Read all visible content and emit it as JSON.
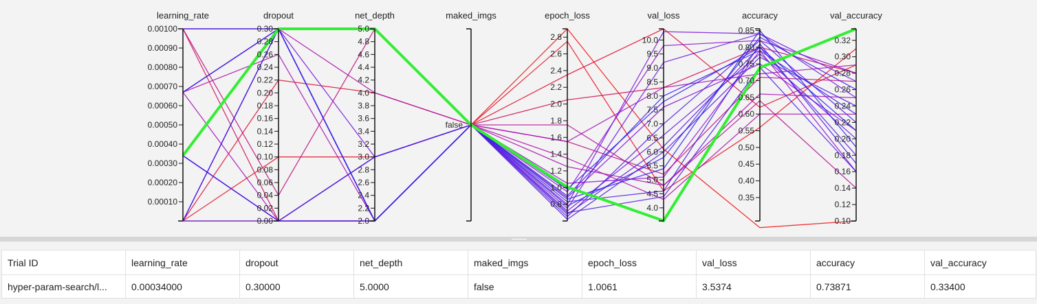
{
  "chart_data": {
    "type": "parallel_coordinates",
    "axes": [
      {
        "key": "learning_rate",
        "label": "learning_rate",
        "min": 0.0,
        "max": 0.001,
        "ticks": [
          "0.00100",
          "0.00090",
          "0.00080",
          "0.00070",
          "0.00060",
          "0.00050",
          "0.00040",
          "0.00030",
          "0.00020",
          "0.00010"
        ],
        "tick_values": [
          0.001,
          0.0009,
          0.0008,
          0.0007,
          0.0006,
          0.0005,
          0.0004,
          0.0003,
          0.0002,
          0.0001
        ]
      },
      {
        "key": "dropout",
        "label": "dropout",
        "min": 0.0,
        "max": 0.3,
        "ticks": [
          "0.30",
          "0.28",
          "0.26",
          "0.24",
          "0.22",
          "0.20",
          "0.18",
          "0.16",
          "0.14",
          "0.12",
          "0.10",
          "0.08",
          "0.06",
          "0.04",
          "0.02",
          "0.00"
        ],
        "tick_values": [
          0.3,
          0.28,
          0.26,
          0.24,
          0.22,
          0.2,
          0.18,
          0.16,
          0.14,
          0.12,
          0.1,
          0.08,
          0.06,
          0.04,
          0.02,
          0.0
        ]
      },
      {
        "key": "net_depth",
        "label": "net_depth",
        "min": 2.0,
        "max": 5.0,
        "ticks": [
          "5.0",
          "4.8",
          "4.6",
          "4.4",
          "4.2",
          "4.0",
          "3.8",
          "3.6",
          "3.4",
          "3.2",
          "3.0",
          "2.8",
          "2.6",
          "2.4",
          "2.2",
          "2.0"
        ],
        "tick_values": [
          5.0,
          4.8,
          4.6,
          4.4,
          4.2,
          4.0,
          3.8,
          3.6,
          3.4,
          3.2,
          3.0,
          2.8,
          2.6,
          2.4,
          2.2,
          2.0
        ]
      },
      {
        "key": "maked_imgs",
        "label": "maked_imgs",
        "categorical": true,
        "ticks": [
          "false"
        ]
      },
      {
        "key": "epoch_loss",
        "label": "epoch_loss",
        "min": 0.6,
        "max": 2.9,
        "ticks": [
          "2.8",
          "2.6",
          "2.4",
          "2.2",
          "2.0",
          "1.8",
          "1.6",
          "1.4",
          "1.2",
          "1.0",
          "0.8"
        ],
        "tick_values": [
          2.8,
          2.6,
          2.4,
          2.2,
          2.0,
          1.8,
          1.6,
          1.4,
          1.2,
          1.0,
          0.8
        ]
      },
      {
        "key": "val_loss",
        "label": "val_loss",
        "min": 3.53,
        "max": 10.4,
        "ticks": [
          "10.0",
          "9.5",
          "9.0",
          "8.5",
          "8.0",
          "7.5",
          "7.0",
          "6.5",
          "6.0",
          "5.5",
          "5.0",
          "4.5",
          "4.0"
        ],
        "tick_values": [
          10.0,
          9.5,
          9.0,
          8.5,
          8.0,
          7.5,
          7.0,
          6.5,
          6.0,
          5.5,
          5.0,
          4.5,
          4.0
        ]
      },
      {
        "key": "accuracy",
        "label": "accuracy",
        "min": 0.28,
        "max": 0.855,
        "ticks": [
          "0.85",
          "0.80",
          "0.75",
          "0.70",
          "0.65",
          "0.60",
          "0.55",
          "0.50",
          "0.45",
          "0.40",
          "0.35"
        ],
        "tick_values": [
          0.85,
          0.8,
          0.75,
          0.7,
          0.65,
          0.6,
          0.55,
          0.5,
          0.45,
          0.4,
          0.35
        ]
      },
      {
        "key": "val_accuracy",
        "label": "val_accuracy",
        "min": 0.1,
        "max": 0.334,
        "ticks": [
          "0.32",
          "0.30",
          "0.28",
          "0.26",
          "0.24",
          "0.22",
          "0.20",
          "0.18",
          "0.16",
          "0.14",
          "0.12",
          "0.10"
        ],
        "tick_values": [
          0.32,
          0.3,
          0.28,
          0.26,
          0.24,
          0.22,
          0.2,
          0.18,
          0.16,
          0.14,
          0.12,
          0.1
        ]
      }
    ],
    "highlight_color": "#33ee33",
    "color_scale": [
      "#2222ee",
      "#9911cc",
      "#ee1111"
    ],
    "trials": [
      {
        "v": [
          0.00034,
          0.3,
          5.0,
          "false",
          1.0061,
          3.5374,
          0.73871,
          0.334
        ],
        "highlight": true
      },
      {
        "v": [
          0.0,
          0.0,
          2.0,
          "false",
          2.9,
          6.1,
          0.26,
          0.1
        ],
        "c": 1.0
      },
      {
        "v": [
          0.0,
          0.1,
          3.0,
          "false",
          2.75,
          4.6,
          0.56,
          0.31
        ],
        "c": 0.95
      },
      {
        "v": [
          0.0,
          0.22,
          4.0,
          "false",
          2.35,
          10.4,
          0.62,
          0.29
        ],
        "c": 0.9
      },
      {
        "v": [
          0.001,
          0.0,
          3.0,
          "false",
          2.05,
          8.3,
          0.8,
          0.28
        ],
        "c": 0.8
      },
      {
        "v": [
          0.001,
          0.04,
          5.0,
          "false",
          1.55,
          5.2,
          0.71,
          0.27
        ],
        "c": 0.7
      },
      {
        "v": [
          0.001,
          0.3,
          2.0,
          "false",
          1.75,
          4.8,
          0.64,
          0.14
        ],
        "c": 0.65
      },
      {
        "v": [
          0.00067,
          0.3,
          4.0,
          "false",
          1.35,
          4.3,
          0.6,
          0.23
        ],
        "c": 0.6
      },
      {
        "v": [
          0.00067,
          0.26,
          2.0,
          "false",
          1.25,
          4.8,
          0.66,
          0.25
        ],
        "c": 0.58
      },
      {
        "v": [
          0.00067,
          0.0,
          3.0,
          "false",
          1.55,
          8.3,
          0.72,
          0.29
        ],
        "c": 0.55
      },
      {
        "v": [
          0.0,
          0.3,
          2.0,
          "false",
          1.05,
          5.1,
          0.79,
          0.16
        ],
        "c": 0.5
      },
      {
        "v": [
          0.0,
          0.3,
          5.0,
          "false",
          0.95,
          9.8,
          0.82,
          0.28
        ],
        "c": 0.45
      },
      {
        "v": [
          0.00034,
          0.0,
          2.0,
          "false",
          0.88,
          7.6,
          0.75,
          0.21
        ],
        "c": 0.4
      },
      {
        "v": [
          0.00034,
          0.3,
          3.0,
          "false",
          0.8,
          10.3,
          0.84,
          0.25
        ],
        "c": 0.35
      },
      {
        "v": [
          0.00034,
          0.0,
          2.0,
          "false",
          0.75,
          9.2,
          0.84,
          0.27
        ],
        "c": 0.3
      },
      {
        "v": [
          0.001,
          0.3,
          2.0,
          "false",
          0.72,
          6.6,
          0.78,
          0.2
        ],
        "c": 0.28
      },
      {
        "v": [
          0.00067,
          0.3,
          2.0,
          "false",
          0.68,
          6.2,
          0.8,
          0.18
        ],
        "c": 0.25
      },
      {
        "v": [
          0.00034,
          0.0,
          3.0,
          "false",
          0.65,
          7.0,
          0.82,
          0.22
        ],
        "c": 0.22
      },
      {
        "v": [
          0.00034,
          0.0,
          2.0,
          "false",
          0.62,
          6.0,
          0.77,
          0.24
        ],
        "c": 0.2
      },
      {
        "v": [
          0.00034,
          0.0,
          2.0,
          "false",
          0.7,
          4.4,
          0.74,
          0.16
        ],
        "c": 0.18
      },
      {
        "v": [
          0.0,
          0.0,
          3.0,
          "false",
          0.83,
          4.6,
          0.81,
          0.17
        ],
        "c": 0.15
      },
      {
        "v": [
          0.001,
          0.3,
          5.0,
          "false",
          0.9,
          8.0,
          0.79,
          0.23
        ],
        "c": 0.12
      },
      {
        "v": [
          0.00067,
          0.3,
          2.0,
          "false",
          0.78,
          5.8,
          0.83,
          0.26
        ],
        "c": 0.1
      },
      {
        "v": [
          0.0,
          0.3,
          5.0,
          "false",
          0.98,
          7.8,
          0.8,
          0.21
        ],
        "c": 0.08
      },
      {
        "v": [
          0.00034,
          0.3,
          2.0,
          "false",
          0.86,
          5.4,
          0.85,
          0.19
        ],
        "c": 0.05
      }
    ]
  },
  "table": {
    "columns": [
      "Trial ID",
      "learning_rate",
      "dropout",
      "net_depth",
      "maked_imgs",
      "epoch_loss",
      "val_loss",
      "accuracy",
      "val_accuracy"
    ],
    "rows": [
      [
        "hyper-param-search/l...",
        "0.00034000",
        "0.30000",
        "5.0000",
        "false",
        "1.0061",
        "3.5374",
        "0.73871",
        "0.33400"
      ]
    ]
  }
}
